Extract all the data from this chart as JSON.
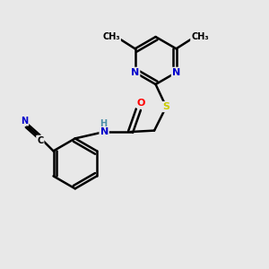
{
  "background_color": "#e8e8e8",
  "atom_colors": {
    "C": "#000000",
    "N": "#0000cc",
    "O": "#ff0000",
    "S": "#cccc00",
    "H": "#4a8fa8"
  },
  "bond_color": "#000000",
  "bond_width": 1.8,
  "figsize": [
    3.0,
    3.0
  ],
  "dpi": 100
}
